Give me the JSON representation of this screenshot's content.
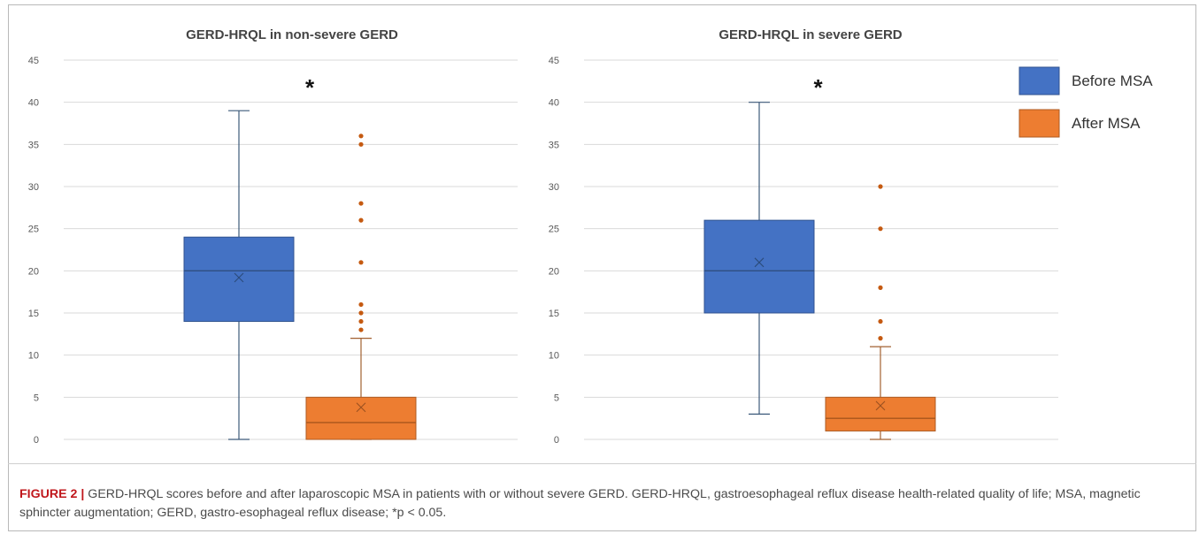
{
  "figure": {
    "caption_label": "FIGURE 2 |",
    "caption_text": " GERD-HRQL scores before and after laparoscopic MSA in patients with or without severe GERD. GERD-HRQL, gastroesophageal reflux disease health-related quality of life; MSA, magnetic sphincter augmentation; GERD, gastro-esophageal reflux disease; *p < 0.05."
  },
  "legend": {
    "position": "top-right",
    "items": [
      {
        "label": "Before MSA",
        "color": "#4472c4"
      },
      {
        "label": "After MSA",
        "color": "#ed7d31"
      }
    ]
  },
  "chart_data": [
    {
      "type": "box",
      "title": "GERD-HRQL in non-severe GERD",
      "ylim": [
        0,
        45
      ],
      "yticks": [
        0,
        5,
        10,
        15,
        20,
        25,
        30,
        35,
        40,
        45
      ],
      "grid": true,
      "annotation": "*",
      "series": [
        {
          "name": "Before MSA",
          "color": "#4472c4",
          "min": 0,
          "q1": 14,
          "median": 20,
          "q3": 24,
          "max": 39,
          "mean": 19.2,
          "outliers": []
        },
        {
          "name": "After MSA",
          "color": "#ed7d31",
          "min": 0,
          "q1": 0,
          "median": 2,
          "q3": 5,
          "max": 12,
          "mean": 3.8,
          "outliers": [
            13,
            14,
            15,
            16,
            21,
            26,
            28,
            35,
            36
          ]
        }
      ]
    },
    {
      "type": "box",
      "title": "GERD-HRQL in severe GERD",
      "ylim": [
        0,
        45
      ],
      "yticks": [
        0,
        5,
        10,
        15,
        20,
        25,
        30,
        35,
        40,
        45
      ],
      "grid": true,
      "annotation": "*",
      "series": [
        {
          "name": "Before MSA",
          "color": "#4472c4",
          "min": 3,
          "q1": 15,
          "median": 20,
          "q3": 26,
          "max": 40,
          "mean": 21,
          "outliers": []
        },
        {
          "name": "After MSA",
          "color": "#ed7d31",
          "min": 0,
          "q1": 1,
          "median": 2.5,
          "q3": 5,
          "max": 11,
          "mean": 4,
          "outliers": [
            12,
            14,
            18,
            25,
            30
          ]
        }
      ]
    }
  ]
}
